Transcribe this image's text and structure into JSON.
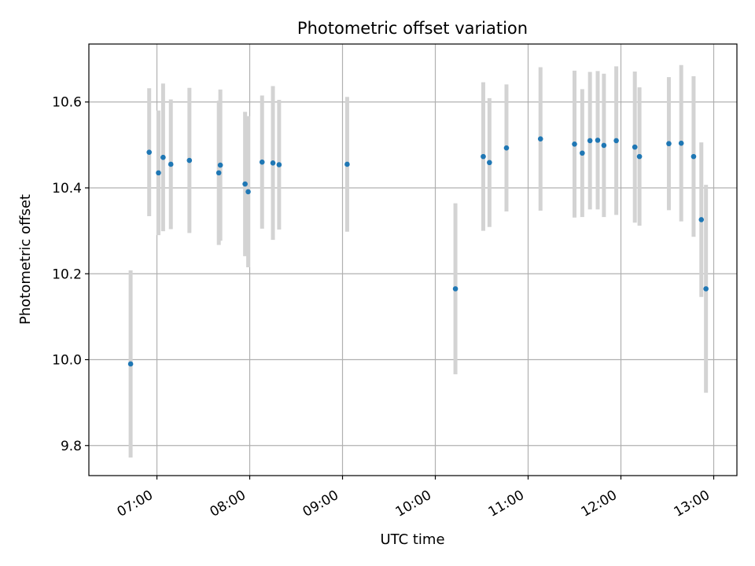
{
  "chart_data": {
    "type": "scatter",
    "title": "Photometric offset variation",
    "xlabel": "UTC time",
    "ylabel": "Photometric offset",
    "grid": true,
    "xlim": [
      "06:16",
      "13:15"
    ],
    "ylim": [
      9.73,
      10.735
    ],
    "x_ticks": [
      "07:00",
      "08:00",
      "09:00",
      "10:00",
      "11:00",
      "12:00",
      "13:00"
    ],
    "y_ticks": [
      "9.8",
      "10.0",
      "10.2",
      "10.4",
      "10.6"
    ],
    "colors": {
      "point": "#1f77b4",
      "errorbar": "#d3d3d3",
      "grid": "#b0b0b0",
      "axes": "#000000"
    },
    "points": [
      {
        "time": "06:43",
        "y": 9.99,
        "err": 0.218
      },
      {
        "time": "06:55",
        "y": 10.483,
        "err": 0.149
      },
      {
        "time": "07:01",
        "y": 10.435,
        "err": 0.145
      },
      {
        "time": "07:04",
        "y": 10.471,
        "err": 0.172
      },
      {
        "time": "07:09",
        "y": 10.455,
        "err": 0.151
      },
      {
        "time": "07:21",
        "y": 10.464,
        "err": 0.169
      },
      {
        "time": "07:40",
        "y": 10.435,
        "err": 0.168
      },
      {
        "time": "07:41",
        "y": 10.453,
        "err": 0.176
      },
      {
        "time": "07:57",
        "y": 10.409,
        "err": 0.168
      },
      {
        "time": "07:59",
        "y": 10.391,
        "err": 0.176
      },
      {
        "time": "08:08",
        "y": 10.46,
        "err": 0.155
      },
      {
        "time": "08:15",
        "y": 10.458,
        "err": 0.179
      },
      {
        "time": "08:19",
        "y": 10.454,
        "err": 0.151
      },
      {
        "time": "09:03",
        "y": 10.455,
        "err": 0.157
      },
      {
        "time": "10:13",
        "y": 10.165,
        "err": 0.199
      },
      {
        "time": "10:31",
        "y": 10.473,
        "err": 0.173
      },
      {
        "time": "10:35",
        "y": 10.459,
        "err": 0.15
      },
      {
        "time": "10:46",
        "y": 10.493,
        "err": 0.148
      },
      {
        "time": "11:08",
        "y": 10.514,
        "err": 0.167
      },
      {
        "time": "11:30",
        "y": 10.502,
        "err": 0.171
      },
      {
        "time": "11:35",
        "y": 10.481,
        "err": 0.149
      },
      {
        "time": "11:40",
        "y": 10.51,
        "err": 0.16
      },
      {
        "time": "11:45",
        "y": 10.511,
        "err": 0.161
      },
      {
        "time": "11:49",
        "y": 10.499,
        "err": 0.167
      },
      {
        "time": "11:57",
        "y": 10.51,
        "err": 0.173
      },
      {
        "time": "12:09",
        "y": 10.495,
        "err": 0.176
      },
      {
        "time": "12:12",
        "y": 10.473,
        "err": 0.161
      },
      {
        "time": "12:31",
        "y": 10.503,
        "err": 0.155
      },
      {
        "time": "12:39",
        "y": 10.504,
        "err": 0.182
      },
      {
        "time": "12:47",
        "y": 10.473,
        "err": 0.187
      },
      {
        "time": "12:52",
        "y": 10.326,
        "err": 0.18
      },
      {
        "time": "12:55",
        "y": 10.165,
        "err": 0.242
      }
    ]
  }
}
